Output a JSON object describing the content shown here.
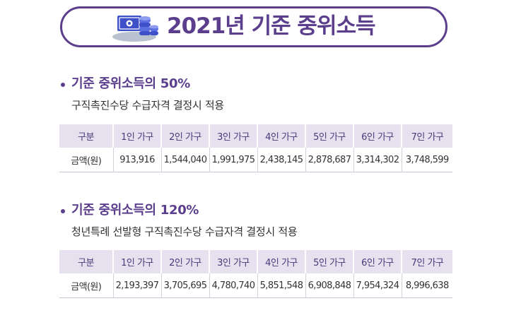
{
  "header": {
    "title": "2021년 기준 중위소득",
    "icon": "money-coins-icon",
    "colors": {
      "accent": "#5b3e8c",
      "table_header_bg": "#e7e0ef",
      "icon_blue": "#3f51c9",
      "icon_gray": "#b8c3cf"
    }
  },
  "sections": [
    {
      "title": "기준 중위소득의 50%",
      "subtitle": "구직촉진수당 수급자격 결정시 적용",
      "table": {
        "headers": [
          "구분",
          "1인 가구",
          "2인 가구",
          "3인 가구",
          "4인 가구",
          "5인 가구",
          "6인 가구",
          "7인 가구"
        ],
        "row_label": "금액(원)",
        "values": [
          "913,916",
          "1,544,040",
          "1,991,975",
          "2,438,145",
          "2,878,687",
          "3,314,302",
          "3,748,599"
        ]
      }
    },
    {
      "title": "기준 중위소득의 120%",
      "subtitle": "청년특례 선발형 구직촉진수당 수급자격 결정시 적용",
      "table": {
        "headers": [
          "구분",
          "1인 가구",
          "2인 가구",
          "3인 가구",
          "4인 가구",
          "5인 가구",
          "6인 가구",
          "7인 가구"
        ],
        "row_label": "금액(원)",
        "values": [
          "2,193,397",
          "3,705,695",
          "4,780,740",
          "5,851,548",
          "6,908,848",
          "7,954,324",
          "8,996,638"
        ]
      }
    }
  ]
}
